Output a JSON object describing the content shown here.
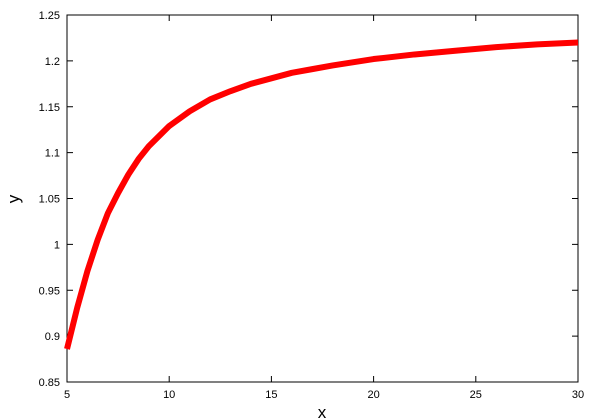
{
  "chart_data": {
    "type": "line",
    "xlabel": "x",
    "ylabel": "y",
    "xlim": [
      5,
      30
    ],
    "ylim": [
      0.85,
      1.25
    ],
    "xticks": [
      "5",
      "10",
      "15",
      "20",
      "25",
      "30"
    ],
    "yticks": [
      "0.85",
      "0.9",
      "0.95",
      "1",
      "1.05",
      "1.1",
      "1.15",
      "1.2",
      "1.25"
    ],
    "grid": false,
    "series": [
      {
        "color": "#ff0000",
        "x": [
          5,
          5.5,
          6,
          6.5,
          7,
          7.5,
          8,
          8.5,
          9,
          10,
          11,
          12,
          13,
          14,
          15,
          16,
          17,
          18,
          20,
          22,
          24,
          26,
          28,
          30
        ],
        "y": [
          0.886,
          0.931,
          0.971,
          1.005,
          1.034,
          1.056,
          1.076,
          1.093,
          1.107,
          1.129,
          1.145,
          1.158,
          1.167,
          1.175,
          1.181,
          1.187,
          1.191,
          1.195,
          1.202,
          1.207,
          1.211,
          1.215,
          1.218,
          1.22
        ]
      }
    ]
  }
}
